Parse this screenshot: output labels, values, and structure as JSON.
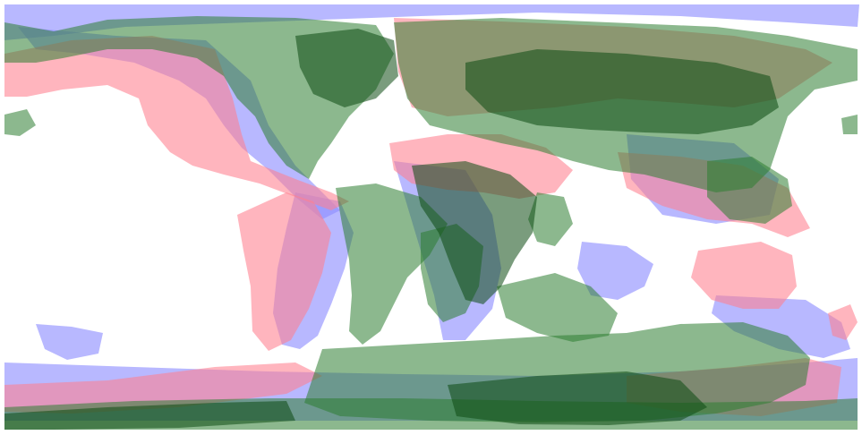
{
  "map": {
    "projection": "equirectangular",
    "layers": [
      {
        "id": "reconstruction-a",
        "color": "#8c8cff"
      },
      {
        "id": "reconstruction-b",
        "color": "#ff7f8f"
      },
      {
        "id": "present-day",
        "color": "#2e7d32"
      }
    ],
    "background_color": "#ffffff"
  }
}
